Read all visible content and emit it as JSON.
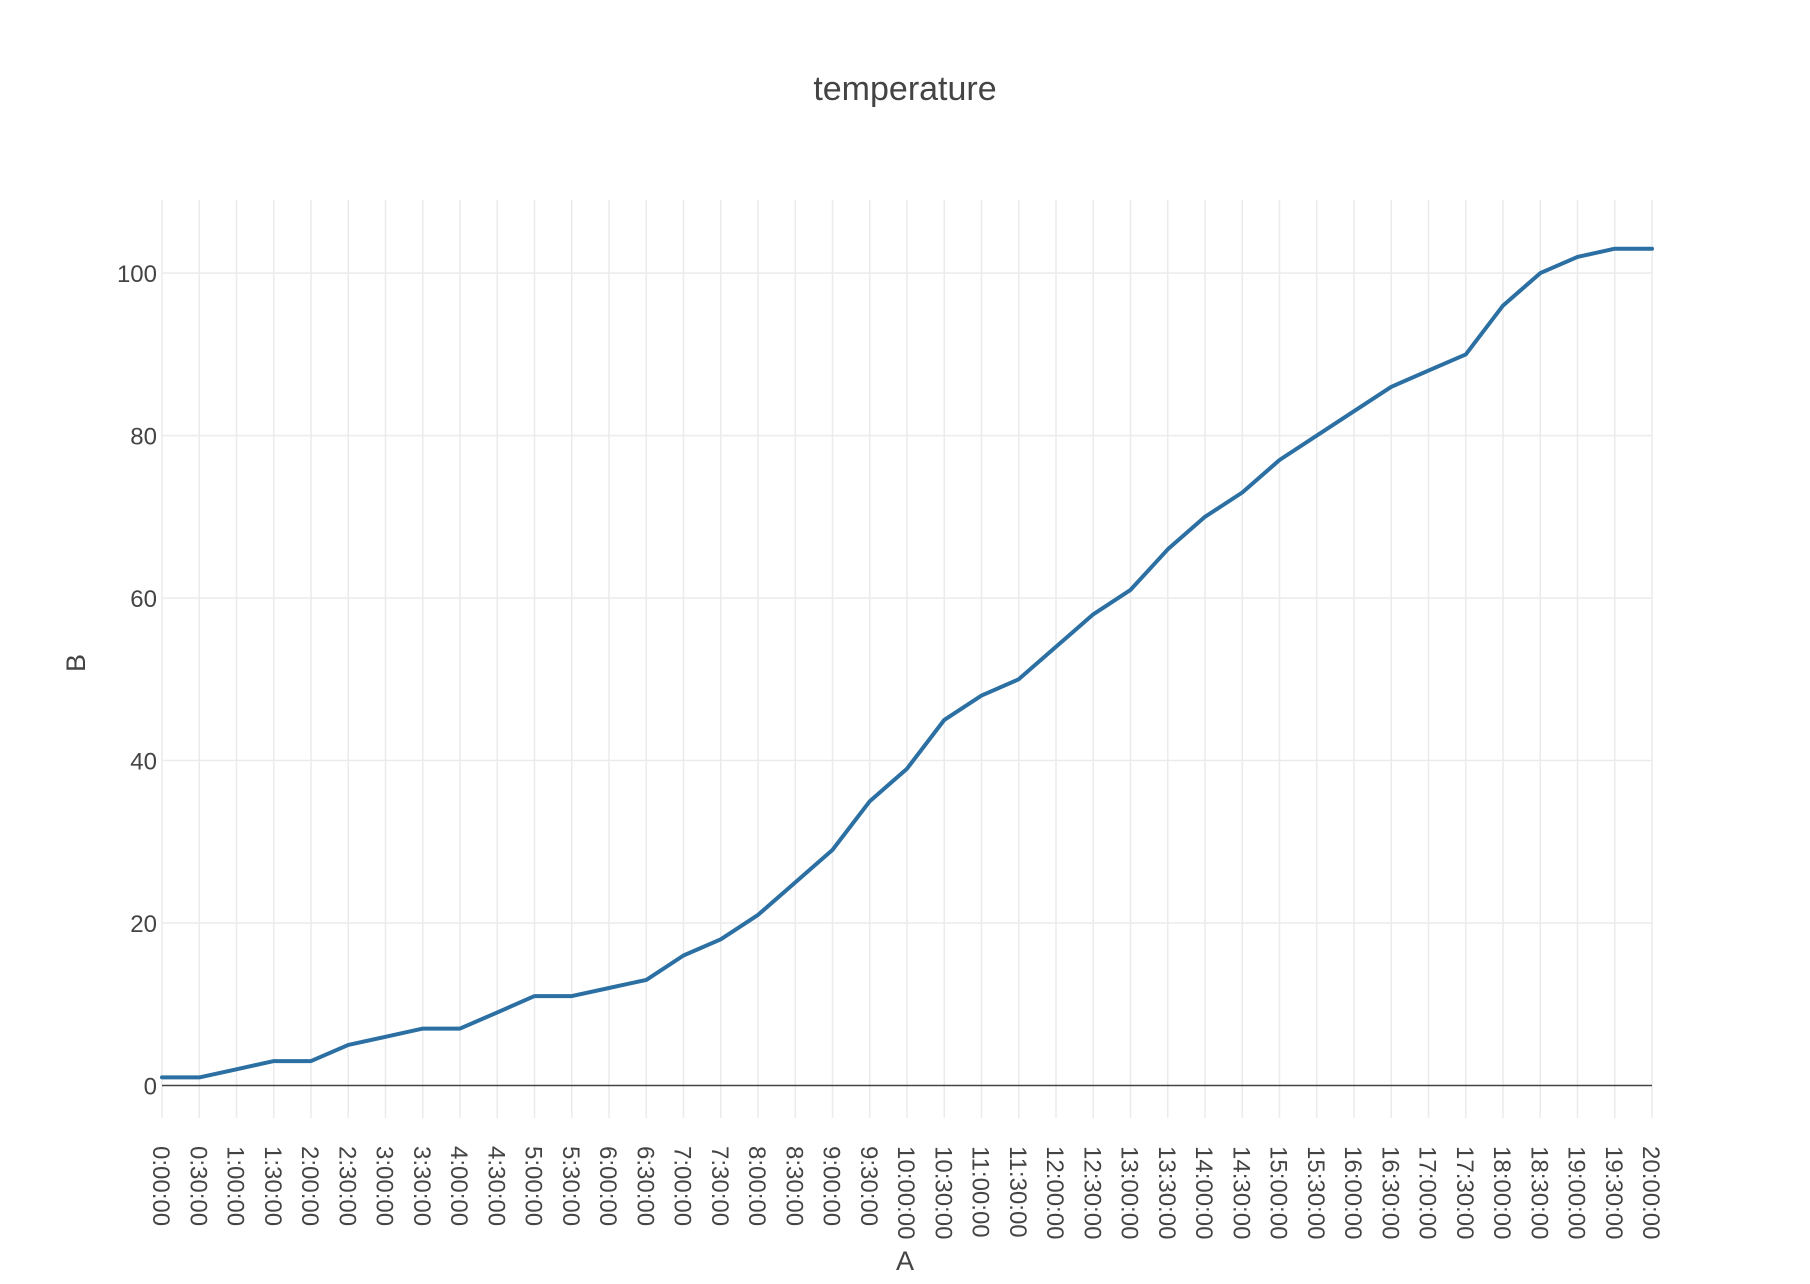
{
  "chart_data": {
    "type": "line",
    "title": "temperature",
    "xlabel": "A",
    "ylabel": "B",
    "ylim": [
      -4,
      109
    ],
    "y_ticks": [
      0,
      20,
      40,
      60,
      80,
      100
    ],
    "x_ticks": [
      "0:00:00",
      "0:30:00",
      "1:00:00",
      "1:30:00",
      "2:00:00",
      "2:30:00",
      "3:00:00",
      "3:30:00",
      "4:00:00",
      "4:30:00",
      "5:00:00",
      "5:30:00",
      "6:00:00",
      "6:30:00",
      "7:00:00",
      "7:30:00",
      "8:00:00",
      "8:30:00",
      "9:00:00",
      "9:30:00",
      "10:00:00",
      "10:30:00",
      "11:00:00",
      "11:30:00",
      "12:00:00",
      "12:30:00",
      "13:00:00",
      "13:30:00",
      "14:00:00",
      "14:30:00",
      "15:00:00",
      "15:30:00",
      "16:00:00",
      "16:30:00",
      "17:00:00",
      "17:30:00",
      "18:00:00",
      "18:30:00",
      "19:00:00",
      "19:30:00",
      "20:00:00"
    ],
    "grid": true,
    "colors": {
      "line": "#2b6fa3",
      "grid": "#ebebeb",
      "zeroline": "#444444"
    },
    "series": [
      {
        "x": [
          "0:00:00",
          "0:30:00",
          "1:00:00",
          "1:30:00",
          "2:00:00",
          "2:30:00",
          "3:00:00",
          "3:30:00",
          "4:00:00",
          "4:30:00",
          "5:00:00",
          "5:30:00",
          "6:00:00",
          "6:30:00",
          "7:00:00",
          "7:30:00",
          "8:00:00",
          "8:30:00",
          "9:00:00",
          "9:30:00",
          "10:00:00",
          "10:30:00",
          "11:00:00",
          "11:30:00",
          "12:00:00",
          "12:30:00",
          "13:00:00",
          "13:30:00",
          "14:00:00",
          "14:30:00",
          "15:00:00",
          "15:30:00",
          "16:00:00",
          "16:30:00",
          "17:00:00",
          "17:30:00",
          "18:00:00",
          "18:30:00",
          "19:00:00",
          "19:30:00",
          "20:00:00"
        ],
        "values": [
          1,
          1,
          2,
          3,
          3,
          5,
          6,
          7,
          7,
          9,
          11,
          11,
          12,
          13,
          16,
          18,
          21,
          25,
          29,
          35,
          39,
          45,
          48,
          50,
          54,
          58,
          61,
          66,
          70,
          73,
          77,
          80,
          83,
          86,
          88,
          90,
          96,
          100,
          102,
          103,
          103
        ]
      }
    ]
  }
}
